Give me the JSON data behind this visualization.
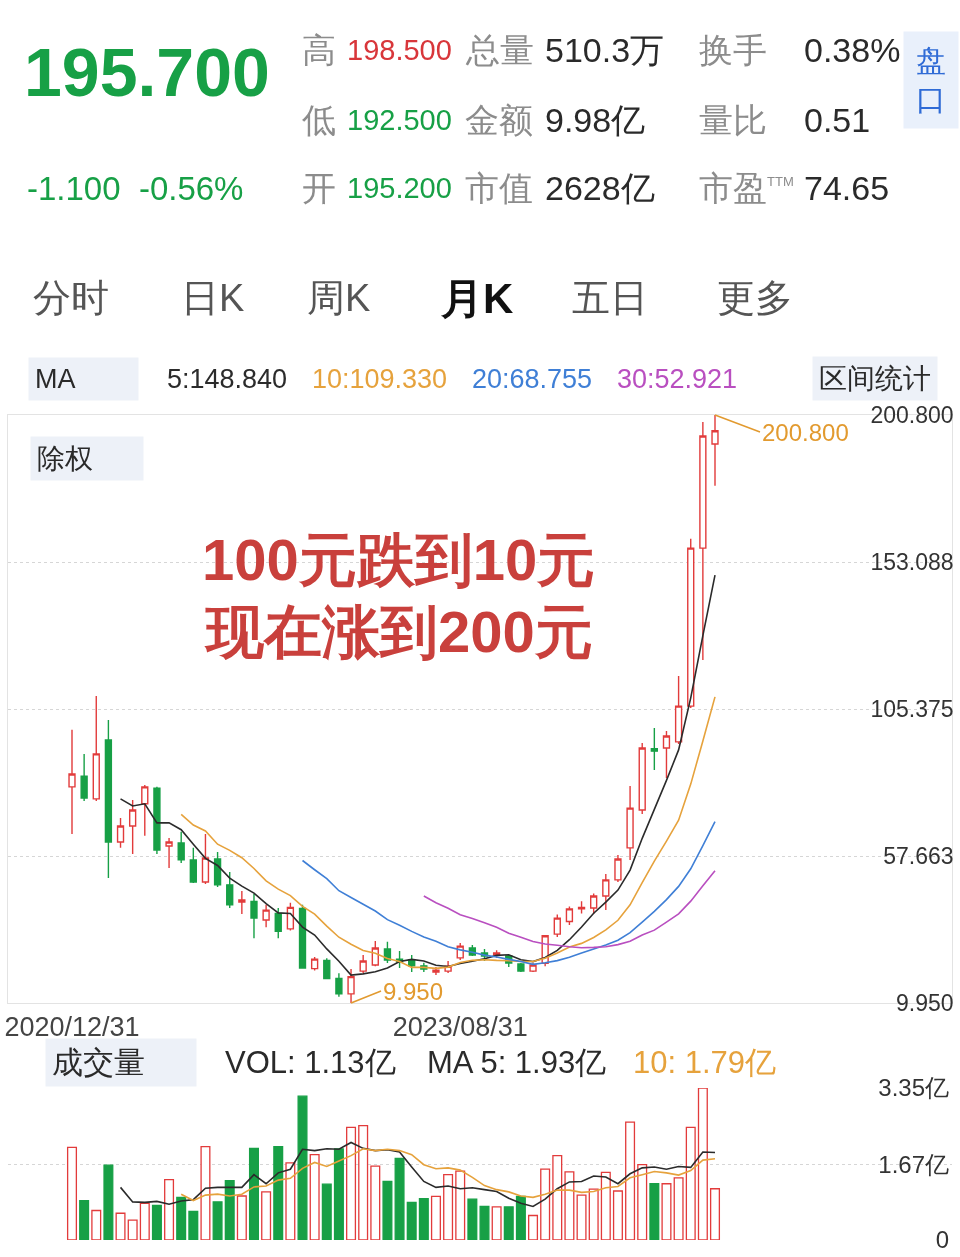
{
  "chart_data": [
    {
      "type": "other",
      "title": "195.700",
      "subtitle": "-1.100  -0.56%",
      "annotations": [
        "高",
        "198.500",
        "总量",
        "510.3万",
        "换手",
        "0.38%",
        "低",
        "192.500",
        "金额",
        "9.98亿",
        "量比",
        "0.51",
        "开",
        "195.200",
        "市值",
        "2628亿",
        "市盈$^{TTM}$",
        "74.65",
        "盘口",
        "分时",
        "日K",
        "周K",
        "月K",
        "五日",
        "更多"
      ]
    },
    {
      "type": "candlestick",
      "categories": [
        "2020/12/31",
        null,
        null,
        null,
        null,
        null,
        null,
        null,
        null,
        null,
        null,
        null,
        null,
        null,
        null,
        null,
        null,
        null,
        null,
        null,
        null,
        null,
        null,
        null,
        null,
        null,
        null,
        null,
        null,
        null,
        null,
        null,
        "2023/08/31",
        null,
        null,
        null,
        null,
        null,
        null,
        null,
        null,
        null,
        null,
        null,
        null,
        null,
        null,
        null,
        null,
        null,
        null,
        null,
        null,
        null
      ],
      "ohlc": [
        [
          80.1,
          98.6,
          64.8,
          84.3
        ],
        [
          83.6,
          90.8,
          75.5,
          76.5
        ],
        [
          76.2,
          109.6,
          75.5,
          90.8
        ],
        [
          95.3,
          101.8,
          50.5,
          62.2
        ],
        [
          62.2,
          70.0,
          60.3,
          67.4
        ],
        [
          67.4,
          75.8,
          58.3,
          72.6
        ],
        [
          74.6,
          80.7,
          64.2,
          80.1
        ],
        [
          79.7,
          80.1,
          58.3,
          59.6
        ],
        [
          60.9,
          63.5,
          53.8,
          62.2
        ],
        [
          61.9,
          65.5,
          55.4,
          56.4
        ],
        [
          56.4,
          60.3,
          48.9,
          49.2
        ],
        [
          49.2,
          64.8,
          48.6,
          57.0
        ],
        [
          56.7,
          59.0,
          47.6,
          48.3
        ],
        [
          48.3,
          52.5,
          40.8,
          41.8
        ],
        [
          42.7,
          46.3,
          38.8,
          43.4
        ],
        [
          42.9,
          45.3,
          31.0,
          37.5
        ],
        [
          36.9,
          41.8,
          34.5,
          40.1
        ],
        [
          39.0,
          40.8,
          31.0,
          33.2
        ],
        [
          34.0,
          42.5,
          33.5,
          41.0
        ],
        [
          40.6,
          41.8,
          21.2,
          21.3
        ],
        [
          21.1,
          24.9,
          20.5,
          24.2
        ],
        [
          23.8,
          24.5,
          17.8,
          17.9
        ],
        [
          17.9,
          19.6,
          12.0,
          12.9
        ],
        [
          12.9,
          21.0,
          9.95,
          18.5
        ],
        [
          20.3,
          25.5,
          19.7,
          23.6
        ],
        [
          22.3,
          30.1,
          21.9,
          27.8
        ],
        [
          27.5,
          29.8,
          22.9,
          23.9
        ],
        [
          24.2,
          26.8,
          21.3,
          23.3
        ],
        [
          23.9,
          25.5,
          20.0,
          22.0
        ],
        [
          22.0,
          23.0,
          20.0,
          21.0
        ],
        [
          20.0,
          21.6,
          19.0,
          20.6
        ],
        [
          20.3,
          23.6,
          19.7,
          21.9
        ],
        [
          24.6,
          29.4,
          23.9,
          28.4
        ],
        [
          27.8,
          28.8,
          25.2,
          25.5
        ],
        [
          26.2,
          27.5,
          23.6,
          25.2
        ],
        [
          25.5,
          27.1,
          24.6,
          26.2
        ],
        [
          25.2,
          25.5,
          21.6,
          22.9
        ],
        [
          22.6,
          22.9,
          20.0,
          20.3
        ],
        [
          20.3,
          22.9,
          20.0,
          22.3
        ],
        [
          22.8,
          32.0,
          21.9,
          31.8
        ],
        [
          32.3,
          38.7,
          31.4,
          37.5
        ],
        [
          36.4,
          41.3,
          35.3,
          40.5
        ],
        [
          40.5,
          43.0,
          39.0,
          41.0
        ],
        [
          40.8,
          45.5,
          38.8,
          44.7
        ],
        [
          44.7,
          51.8,
          40.1,
          49.9
        ],
        [
          49.9,
          58.0,
          49.2,
          56.7
        ],
        [
          60.3,
          80.4,
          56.4,
          73.2
        ],
        [
          72.6,
          94.3,
          71.3,
          92.7
        ],
        [
          92.5,
          99.2,
          85.6,
          91.7
        ],
        [
          92.7,
          98.2,
          83.0,
          96.6
        ],
        [
          94.7,
          116.1,
          94.0,
          106.3
        ],
        [
          106.3,
          160.6,
          105.7,
          157.6
        ],
        [
          157.6,
          198.5,
          121.3,
          194.0
        ],
        [
          191.4,
          200.8,
          177.8,
          195.7
        ]
      ],
      "colors": [
        "#e23b3b",
        "#17a046",
        "#e23b3b",
        "#17a046",
        "#e23b3b",
        "#e23b3b",
        "#e23b3b",
        "#17a046",
        "#e23b3b",
        "#17a046",
        "#17a046",
        "#e23b3b",
        "#17a046",
        "#17a046",
        "#e23b3b",
        "#17a046",
        "#e23b3b",
        "#17a046",
        "#e23b3b",
        "#17a046",
        "#e23b3b",
        "#17a046",
        "#17a046",
        "#e23b3b",
        "#e23b3b",
        "#e23b3b",
        "#17a046",
        "#17a046",
        "#17a046",
        "#17a046",
        "#e23b3b",
        "#e23b3b",
        "#e23b3b",
        "#17a046",
        "#17a046",
        "#e23b3b",
        "#17a046",
        "#17a046",
        "#e23b3b",
        "#e23b3b",
        "#e23b3b",
        "#e23b3b",
        "#e23b3b",
        "#e23b3b",
        "#e23b3b",
        "#e23b3b",
        "#e23b3b",
        "#e23b3b",
        "#17a046",
        "#e23b3b",
        "#e23b3b",
        "#e23b3b",
        "#e23b3b",
        "#e23b3b"
      ],
      "series": [
        {
          "type": "line",
          "name": "5:148.840",
          "color": "#2b2b2b",
          "values": [
            null,
            null,
            null,
            null,
            76.2,
            73.9,
            74.6,
            68.4,
            68.4,
            66.2,
            61.5,
            56.9,
            54.6,
            50.5,
            47.9,
            45.6,
            42.2,
            39.2,
            39.0,
            34.6,
            32.0,
            27.5,
            23.5,
            19.0,
            19.4,
            20.1,
            21.3,
            23.4,
            24.1,
            23.6,
            22.2,
            21.8,
            22.8,
            23.5,
            24.3,
            25.4,
            25.6,
            24.0,
            23.4,
            24.7,
            27.0,
            30.5,
            34.6,
            39.1,
            42.7,
            46.6,
            53.1,
            63.4,
            72.8,
            82.2,
            92.1,
            109.0,
            129.2,
            148.8
          ]
        },
        {
          "type": "line",
          "name": "10:109.330",
          "color": "#e6a23c",
          "values": [
            null,
            null,
            null,
            null,
            null,
            null,
            null,
            null,
            null,
            71.2,
            67.7,
            65.8,
            61.5,
            59.5,
            57.1,
            53.6,
            49.6,
            46.9,
            44.8,
            41.3,
            38.8,
            34.9,
            31.3,
            29.0,
            27.0,
            26.1,
            24.4,
            23.4,
            21.5,
            21.5,
            21.2,
            21.6,
            23.1,
            23.8,
            24.0,
            23.8,
            23.7,
            23.4,
            23.4,
            24.5,
            26.2,
            28.1,
            29.3,
            31.2,
            33.7,
            36.8,
            41.8,
            49.0,
            56.0,
            62.5,
            69.3,
            81.0,
            95.0,
            109.3
          ]
        },
        {
          "type": "line",
          "name": "20:68.755",
          "color": "#3f7fd6",
          "values": [
            null,
            null,
            null,
            null,
            null,
            null,
            null,
            null,
            null,
            null,
            null,
            null,
            null,
            null,
            null,
            null,
            null,
            null,
            null,
            56.2,
            53.2,
            50.3,
            46.4,
            44.2,
            42.0,
            39.8,
            37.0,
            35.2,
            33.2,
            31.4,
            30.0,
            28.2,
            27.2,
            26.4,
            25.5,
            24.9,
            24.1,
            23.4,
            22.5,
            23.0,
            23.7,
            24.8,
            26.2,
            27.5,
            28.8,
            30.3,
            32.8,
            36.2,
            39.7,
            43.5,
            47.8,
            53.5,
            61.0,
            68.8
          ]
        },
        {
          "type": "line",
          "name": "30:52.921",
          "color": "#b94fc0",
          "values": [
            null,
            null,
            null,
            null,
            null,
            null,
            null,
            null,
            null,
            null,
            null,
            null,
            null,
            null,
            null,
            null,
            null,
            null,
            null,
            null,
            null,
            null,
            null,
            null,
            null,
            null,
            null,
            null,
            null,
            44.7,
            42.5,
            40.7,
            38.6,
            37.4,
            36.0,
            34.5,
            32.6,
            31.3,
            29.9,
            29.1,
            28.7,
            28.2,
            27.9,
            28.0,
            28.2,
            28.9,
            30.0,
            32.0,
            33.6,
            36.2,
            38.9,
            43.0,
            48.0,
            52.9
          ]
        }
      ],
      "ylim": [
        9.95,
        200.8
      ],
      "yticks": [
        {
          "value": 9.95,
          "label": "9.950"
        },
        57.663,
        105.375,
        153.088,
        {
          "value": 200.8,
          "label": "200.800"
        }
      ],
      "grid": "y",
      "legend": "top",
      "legend_title": "MA",
      "annotations": [
        "区间统计",
        "除权",
        "100元跌到10元",
        "现在涨到200元",
        "200.800",
        "9.950"
      ]
    },
    {
      "type": "bar",
      "categories": [
        null,
        null,
        null,
        null,
        null,
        null,
        null,
        null,
        null,
        null,
        null,
        null,
        null,
        null,
        null,
        null,
        null,
        null,
        null,
        null,
        null,
        null,
        null,
        null,
        null,
        null,
        null,
        null,
        null,
        null,
        null,
        null,
        null,
        null,
        null,
        null,
        null,
        null,
        null,
        null,
        null,
        null,
        null,
        null,
        null,
        null,
        null,
        null,
        null,
        null,
        null,
        null,
        null,
        null
      ],
      "series": [
        {
          "type": "bar",
          "colors": [
            "#e23b3b",
            "#17a046",
            "#e23b3b",
            "#17a046",
            "#e23b3b",
            "#e23b3b",
            "#e23b3b",
            "#17a046",
            "#e23b3b",
            "#17a046",
            "#17a046",
            "#e23b3b",
            "#17a046",
            "#17a046",
            "#e23b3b",
            "#17a046",
            "#e23b3b",
            "#17a046",
            "#e23b3b",
            "#17a046",
            "#e23b3b",
            "#17a046",
            "#17a046",
            "#e23b3b",
            "#e23b3b",
            "#e23b3b",
            "#17a046",
            "#17a046",
            "#17a046",
            "#17a046",
            "#e23b3b",
            "#e23b3b",
            "#e23b3b",
            "#17a046",
            "#17a046",
            "#e23b3b",
            "#17a046",
            "#17a046",
            "#e23b3b",
            "#e23b3b",
            "#e23b3b",
            "#e23b3b",
            "#e23b3b",
            "#e23b3b",
            "#e23b3b",
            "#e23b3b",
            "#e23b3b",
            "#e23b3b",
            "#17a046",
            "#e23b3b",
            "#e23b3b",
            "#e23b3b",
            "#e23b3b",
            "#e23b3b"
          ],
          "values": [
            2.04,
            0.87,
            0.65,
            1.65,
            0.59,
            0.44,
            0.81,
            0.76,
            1.33,
            0.94,
            0.63,
            2.06,
            0.84,
            1.31,
            0.97,
            2.02,
            1.06,
            2.06,
            1.7,
            3.17,
            1.88,
            1.23,
            2.01,
            2.48,
            2.52,
            1.63,
            1.29,
            1.8,
            0.83,
            0.91,
            0.96,
            1.44,
            1.52,
            0.9,
            0.74,
            0.73,
            0.73,
            0.96,
            0.54,
            1.56,
            1.86,
            1.5,
            0.99,
            1.12,
            1.49,
            1.08,
            2.6,
            1.66,
            1.24,
            1.24,
            1.37,
            2.48,
            3.35,
            1.13
          ]
        },
        {
          "type": "line",
          "name": "MA 5: 1.93亿",
          "color": "#2b2b2b",
          "values": [
            null,
            null,
            null,
            null,
            1.16,
            0.84,
            0.83,
            0.85,
            0.79,
            0.86,
            0.89,
            1.14,
            1.16,
            1.16,
            1.16,
            1.44,
            1.24,
            1.48,
            1.56,
            2.0,
            1.97,
            2.01,
            2.0,
            2.15,
            2.02,
            1.97,
            1.99,
            1.94,
            1.61,
            1.29,
            1.16,
            1.19,
            1.13,
            1.15,
            1.11,
            1.07,
            0.92,
            0.81,
            0.74,
            0.9,
            1.13,
            1.28,
            1.29,
            1.41,
            1.39,
            1.24,
            1.46,
            1.59,
            1.61,
            1.56,
            1.62,
            1.6,
            1.94,
            1.93
          ]
        },
        {
          "type": "line",
          "name": "10: 1.79亿",
          "color": "#e6a23c",
          "values": [
            null,
            null,
            null,
            null,
            null,
            null,
            null,
            null,
            null,
            1.01,
            0.87,
            0.99,
            1.01,
            0.97,
            1.01,
            1.17,
            1.19,
            1.32,
            1.36,
            1.58,
            1.71,
            1.62,
            1.74,
            1.86,
            2.01,
            1.97,
            2.0,
            1.97,
            1.88,
            1.66,
            1.57,
            1.59,
            1.54,
            1.38,
            1.2,
            1.11,
            1.06,
            0.97,
            0.94,
            1.01,
            1.1,
            1.1,
            1.05,
            1.07,
            1.15,
            1.18,
            1.37,
            1.44,
            1.51,
            1.48,
            1.43,
            1.53,
            1.76,
            1.79
          ]
        }
      ],
      "ylim": [
        0,
        3.35
      ],
      "yticks": [
        0,
        {
          "value": 1.67,
          "label": "1.67亿"
        },
        {
          "value": 3.35,
          "label": "3.35亿"
        }
      ],
      "grid": "y",
      "legend": "top",
      "legend_title": "成交量",
      "tick_labels": "y",
      "annotations": [
        "VOL: 1.13亿"
      ]
    }
  ]
}
